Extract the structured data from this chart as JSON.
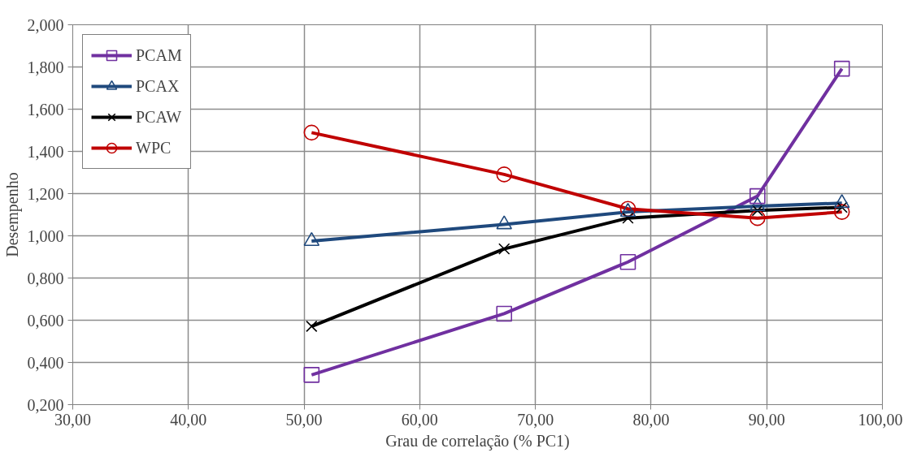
{
  "chart_data": {
    "type": "line",
    "xlabel": "Grau de correlação (% PC1)",
    "ylabel": "Desempenho",
    "x": [
      50.65,
      67.3,
      78.0,
      89.2,
      96.5
    ],
    "series": [
      {
        "name": "PCAM",
        "color": "#7030a0",
        "marker": "square",
        "values": [
          0.341,
          0.631,
          0.876,
          1.188,
          1.792
        ]
      },
      {
        "name": "PCAX",
        "color": "#1f497d",
        "marker": "triangle",
        "values": [
          0.975,
          1.054,
          1.113,
          1.14,
          1.155
        ]
      },
      {
        "name": "PCAW",
        "color": "#000000",
        "marker": "cross",
        "values": [
          0.571,
          0.938,
          1.084,
          1.12,
          1.135
        ]
      },
      {
        "name": "WPC",
        "color": "#c00000",
        "marker": "circle",
        "values": [
          1.489,
          1.291,
          1.128,
          1.084,
          1.113
        ]
      }
    ],
    "xlim": [
      30,
      100
    ],
    "ylim": [
      0.2,
      2.0
    ],
    "xticks": [
      {
        "value": 30,
        "label": "30,00"
      },
      {
        "value": 40,
        "label": "40,00"
      },
      {
        "value": 50,
        "label": "50,00"
      },
      {
        "value": 60,
        "label": "60,00"
      },
      {
        "value": 70,
        "label": "70,00"
      },
      {
        "value": 80,
        "label": "80,00"
      },
      {
        "value": 90,
        "label": "90,00"
      },
      {
        "value": 100,
        "label": "100,00"
      }
    ],
    "yticks": [
      {
        "value": 0.2,
        "label": "0,200"
      },
      {
        "value": 0.4,
        "label": "0,400"
      },
      {
        "value": 0.6,
        "label": "0,600"
      },
      {
        "value": 0.8,
        "label": "0,800"
      },
      {
        "value": 1.0,
        "label": "1,000"
      },
      {
        "value": 1.2,
        "label": "1,200"
      },
      {
        "value": 1.4,
        "label": "1,400"
      },
      {
        "value": 1.6,
        "label": "1,600"
      },
      {
        "value": 1.8,
        "label": "1,800"
      },
      {
        "value": 2.0,
        "label": "2,000"
      }
    ],
    "grid": true,
    "legend": "top left",
    "line_style": "solid"
  }
}
